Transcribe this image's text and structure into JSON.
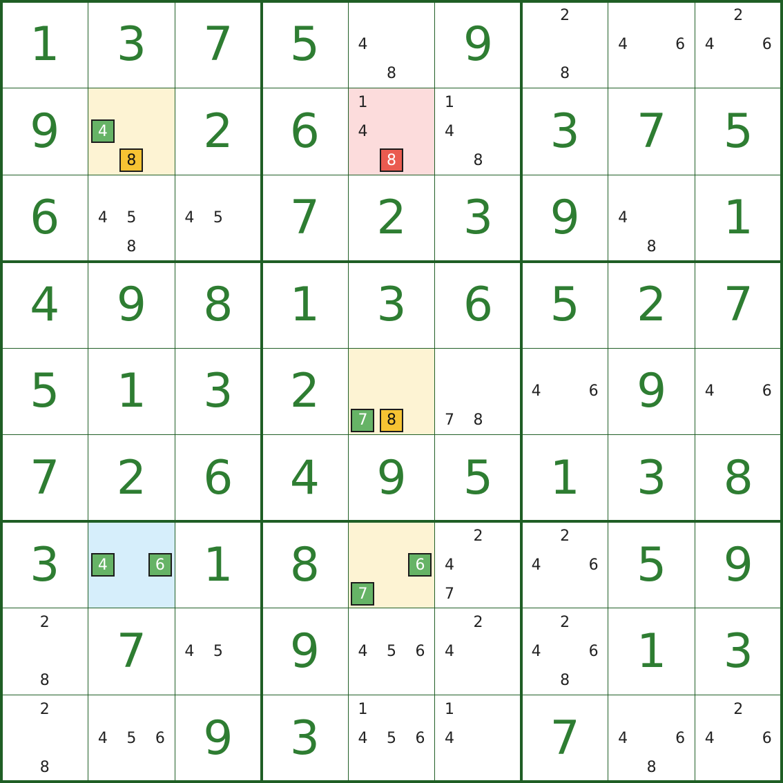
{
  "colors": {
    "given": "#2e7d32",
    "grid": "#1f5e25",
    "bg_yellow": "#fdf3d3",
    "bg_red": "#fcdcdc",
    "bg_blue": "#d6eefb",
    "mark_green": "#66b366",
    "mark_yellow": "#f6c333",
    "mark_red": "#ea5b50"
  },
  "cells": [
    {
      "v": "1"
    },
    {
      "v": "3"
    },
    {
      "v": "7"
    },
    {
      "v": "5"
    },
    {
      "c": [
        "4",
        "8"
      ]
    },
    {
      "v": "9"
    },
    {
      "c": [
        "2",
        "8"
      ]
    },
    {
      "c": [
        "4",
        "6"
      ]
    },
    {
      "c": [
        "2",
        "4",
        "6"
      ]
    },
    {
      "v": "9"
    },
    {
      "c": [
        "4",
        "8"
      ],
      "bg": "yellow",
      "marks": {
        "4": "green",
        "8": "yellow"
      }
    },
    {
      "v": "2"
    },
    {
      "v": "6"
    },
    {
      "c": [
        "1",
        "4",
        "8"
      ],
      "bg": "red",
      "marks": {
        "8": "red"
      }
    },
    {
      "c": [
        "1",
        "4",
        "8"
      ]
    },
    {
      "v": "3"
    },
    {
      "v": "7"
    },
    {
      "v": "5"
    },
    {
      "v": "6"
    },
    {
      "c": [
        "4",
        "5",
        "8"
      ]
    },
    {
      "c": [
        "4",
        "5"
      ]
    },
    {
      "v": "7"
    },
    {
      "v": "2"
    },
    {
      "v": "3"
    },
    {
      "v": "9"
    },
    {
      "c": [
        "4",
        "8"
      ]
    },
    {
      "v": "1"
    },
    {
      "v": "4"
    },
    {
      "v": "9"
    },
    {
      "v": "8"
    },
    {
      "v": "1"
    },
    {
      "v": "3"
    },
    {
      "v": "6"
    },
    {
      "v": "5"
    },
    {
      "v": "2"
    },
    {
      "v": "7"
    },
    {
      "v": "5"
    },
    {
      "v": "1"
    },
    {
      "v": "3"
    },
    {
      "v": "2"
    },
    {
      "c": [
        "7",
        "8"
      ],
      "bg": "yellow",
      "marks": {
        "7": "green",
        "8": "yellow"
      }
    },
    {
      "c": [
        "7",
        "8"
      ]
    },
    {
      "c": [
        "4",
        "6"
      ]
    },
    {
      "v": "9"
    },
    {
      "c": [
        "4",
        "6"
      ]
    },
    {
      "v": "7"
    },
    {
      "v": "2"
    },
    {
      "v": "6"
    },
    {
      "v": "4"
    },
    {
      "v": "9"
    },
    {
      "v": "5"
    },
    {
      "v": "1"
    },
    {
      "v": "3"
    },
    {
      "v": "8"
    },
    {
      "v": "3"
    },
    {
      "c": [
        "4",
        "6"
      ],
      "bg": "blue",
      "marks": {
        "4": "green",
        "6": "green"
      }
    },
    {
      "v": "1"
    },
    {
      "v": "8"
    },
    {
      "c": [
        "6",
        "7"
      ],
      "bg": "yellow",
      "marks": {
        "6": "green",
        "7": "green"
      }
    },
    {
      "c": [
        "2",
        "4",
        "7"
      ]
    },
    {
      "c": [
        "2",
        "4",
        "6"
      ]
    },
    {
      "v": "5"
    },
    {
      "v": "9"
    },
    {
      "c": [
        "2",
        "8"
      ]
    },
    {
      "v": "7"
    },
    {
      "c": [
        "4",
        "5"
      ]
    },
    {
      "v": "9"
    },
    {
      "c": [
        "4",
        "5",
        "6"
      ]
    },
    {
      "c": [
        "2",
        "4"
      ]
    },
    {
      "c": [
        "2",
        "4",
        "6",
        "8"
      ]
    },
    {
      "v": "1"
    },
    {
      "v": "3"
    },
    {
      "c": [
        "2",
        "8"
      ]
    },
    {
      "c": [
        "4",
        "5",
        "6"
      ]
    },
    {
      "v": "9"
    },
    {
      "v": "3"
    },
    {
      "c": [
        "1",
        "4",
        "5",
        "6"
      ]
    },
    {
      "c": [
        "1",
        "4"
      ]
    },
    {
      "v": "7"
    },
    {
      "c": [
        "4",
        "6",
        "8"
      ]
    },
    {
      "c": [
        "2",
        "4",
        "6"
      ]
    }
  ]
}
